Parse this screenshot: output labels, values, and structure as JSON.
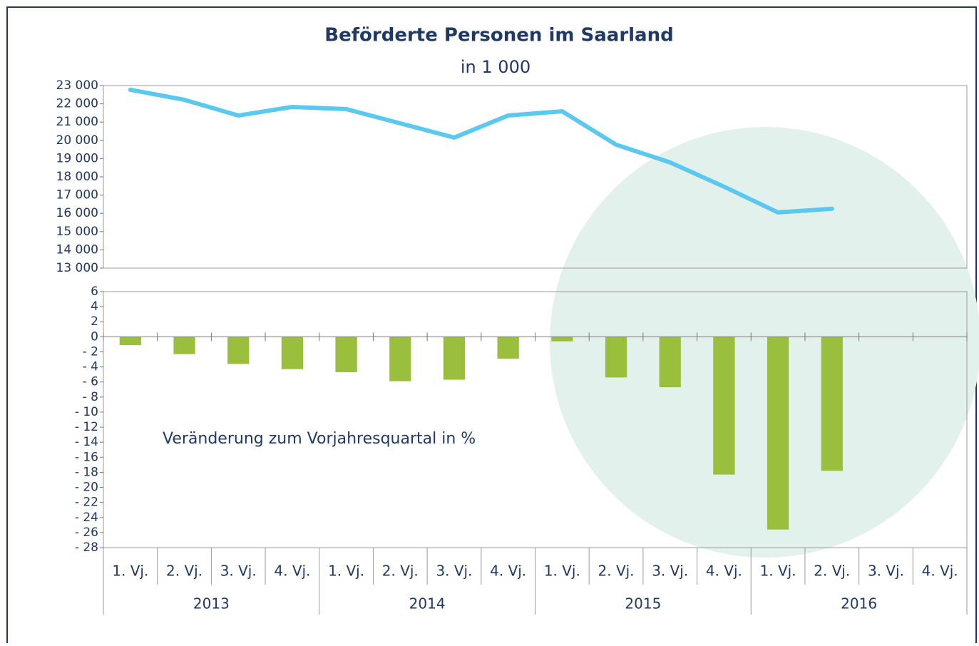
{
  "chart_data": [
    {
      "type": "line",
      "title": "Beförderte Personen im Saarland",
      "subtitle": "in 1 000",
      "color": "#5bc8f0",
      "values": [
        22770,
        22220,
        21360,
        21830,
        21710,
        20930,
        20150,
        21360,
        21590,
        19760,
        18790,
        17460,
        16050,
        16250,
        null,
        null
      ],
      "ylim": [
        13000,
        23000
      ],
      "yticks": [
        {
          "value": 13000,
          "label": "13 000"
        },
        {
          "value": 14000,
          "label": "14 000"
        },
        {
          "value": 15000,
          "label": "15 000"
        },
        {
          "value": 16000,
          "label": "16 000"
        },
        {
          "value": 17000,
          "label": "17 000"
        },
        {
          "value": 18000,
          "label": "18 000"
        },
        {
          "value": 19000,
          "label": "19 000"
        },
        {
          "value": 20000,
          "label": "20 000"
        },
        {
          "value": 21000,
          "label": "21 000"
        },
        {
          "value": 22000,
          "label": "22 000"
        },
        {
          "value": 23000,
          "label": "23 000"
        }
      ]
    },
    {
      "type": "bar",
      "annotation": "Veränderung zum Vorjahresquartal in %",
      "color": "#9abf3c",
      "categories": [
        "1. Vj.",
        "2. Vj.",
        "3. Vj.",
        "4. Vj.",
        "1. Vj.",
        "2. Vj.",
        "3. Vj.",
        "4. Vj.",
        "1. Vj.",
        "2. Vj.",
        "3. Vj.",
        "4. Vj.",
        "1. Vj.",
        "2. Vj.",
        "3. Vj.",
        "4. Vj."
      ],
      "year_groups": [
        "2013",
        "2014",
        "2015",
        "2016"
      ],
      "values": [
        -1.1,
        -2.3,
        -3.6,
        -4.3,
        -4.7,
        -5.9,
        -5.7,
        -2.9,
        -0.6,
        -5.4,
        -6.7,
        -18.3,
        -25.6,
        -17.8,
        null,
        null
      ],
      "ylim": [
        -28,
        6
      ],
      "yticks": [
        6,
        4,
        2,
        0,
        {
          "value": -2,
          "label": "- 2"
        },
        {
          "value": -4,
          "label": "- 4"
        },
        {
          "value": -6,
          "label": "- 6"
        },
        {
          "value": -8,
          "label": "- 8"
        },
        {
          "value": -10,
          "label": "- 10"
        },
        {
          "value": -12,
          "label": "- 12"
        },
        {
          "value": -14,
          "label": "- 14"
        },
        {
          "value": -16,
          "label": "- 16"
        },
        {
          "value": -18,
          "label": "- 18"
        },
        {
          "value": -20,
          "label": "- 20"
        },
        {
          "value": -22,
          "label": "- 22"
        },
        {
          "value": -24,
          "label": "- 24"
        },
        {
          "value": -26,
          "label": "- 26"
        },
        {
          "value": -28,
          "label": "- 28"
        }
      ]
    }
  ]
}
